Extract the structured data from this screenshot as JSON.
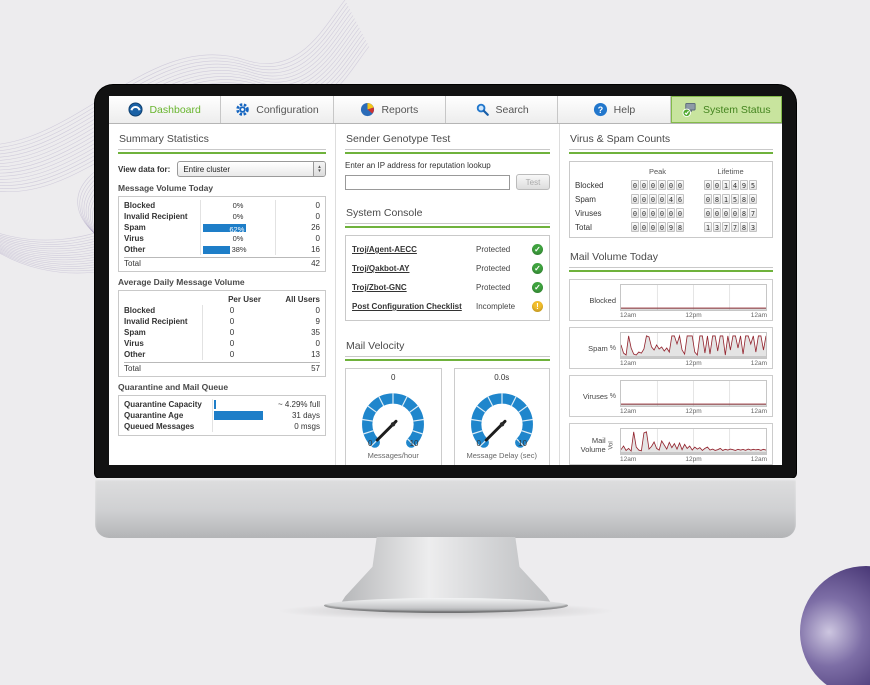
{
  "colors": {
    "accent_green": "#6fb23c",
    "active_tab_green": "#68b52e",
    "bar_blue": "#1e7ec8",
    "gauge_blue": "#1f86cc",
    "spark_red": "#93242e",
    "ok_green": "#3fa23f",
    "warn_yellow": "#f1bd2c"
  },
  "nav": {
    "tabs": [
      {
        "label": "Dashboard",
        "icon": "dashboard-icon"
      },
      {
        "label": "Configuration",
        "icon": "gear-icon"
      },
      {
        "label": "Reports",
        "icon": "pie-chart-icon"
      },
      {
        "label": "Search",
        "icon": "search-icon"
      },
      {
        "label": "Help",
        "icon": "help-icon"
      },
      {
        "label": "System Status",
        "icon": "system-status-icon"
      }
    ]
  },
  "summary": {
    "title": "Summary Statistics",
    "view_label": "View data for:",
    "view_value": "Entire cluster",
    "message_volume_today": {
      "title": "Message Volume Today",
      "rows": [
        {
          "label": "Blocked",
          "pct": 0,
          "pct_label": "0%",
          "count": "0"
        },
        {
          "label": "Invalid Recipient",
          "pct": 0,
          "pct_label": "0%",
          "count": "0"
        },
        {
          "label": "Spam",
          "pct": 62,
          "pct_label": "62%",
          "count": "26"
        },
        {
          "label": "Virus",
          "pct": 0,
          "pct_label": "0%",
          "count": "0"
        },
        {
          "label": "Other",
          "pct": 38,
          "pct_label": "38%",
          "count": "16"
        }
      ],
      "total_label": "Total",
      "total": "42"
    },
    "avg_daily": {
      "title": "Average Daily Message Volume",
      "col1": "Per User",
      "col2": "All Users",
      "rows": [
        {
          "label": "Blocked",
          "per_user": "0",
          "all_users": "0"
        },
        {
          "label": "Invalid Recipient",
          "per_user": "0",
          "all_users": "9"
        },
        {
          "label": "Spam",
          "per_user": "0",
          "all_users": "35"
        },
        {
          "label": "Virus",
          "per_user": "0",
          "all_users": "0"
        },
        {
          "label": "Other",
          "per_user": "0",
          "all_users": "13"
        }
      ],
      "total_label": "Total",
      "total": "57"
    },
    "quarantine": {
      "title": "Quarantine and Mail Queue",
      "rows": [
        {
          "label": "Quarantine Capacity",
          "pct": 4,
          "value": "~ 4.29% full"
        },
        {
          "label": "Quarantine Age",
          "pct": 100,
          "value": "31 days"
        },
        {
          "label": "Queued Messages",
          "pct": 0,
          "value": "0 msgs"
        }
      ]
    }
  },
  "genotype": {
    "title": "Sender Genotype Test",
    "prompt": "Enter an IP address for reputation lookup",
    "input_value": "",
    "button_label": "Test"
  },
  "console": {
    "title": "System Console",
    "rows": [
      {
        "label": "Troj/Agent-AECC",
        "status": "Protected",
        "state": "ok"
      },
      {
        "label": "Troj/Qakbot-AY",
        "status": "Protected",
        "state": "ok"
      },
      {
        "label": "Troj/Zbot-GNC",
        "status": "Protected",
        "state": "ok"
      },
      {
        "label": "Post Configuration Checklist",
        "status": "Incomplete",
        "state": "warn"
      }
    ]
  },
  "velocity": {
    "title": "Mail Velocity"
  },
  "counts": {
    "title": "Virus & Spam Counts",
    "col1": "Peak",
    "col2": "Lifetime",
    "rows": [
      {
        "label": "Blocked",
        "peak": "000000",
        "lifetime": "001495"
      },
      {
        "label": "Spam",
        "peak": "000046",
        "lifetime": "081580"
      },
      {
        "label": "Viruses",
        "peak": "000000",
        "lifetime": "000087"
      },
      {
        "label": "Total",
        "peak": "000098",
        "lifetime": "137783"
      }
    ]
  },
  "mail_volume": {
    "title": "Mail Volume Today"
  },
  "chart_data": [
    {
      "type": "line",
      "title": "Blocked",
      "ylabel": "",
      "x_ticks": [
        "12am",
        "12pm",
        "12am"
      ],
      "ylim": [
        0,
        100
      ],
      "fill": false,
      "values": [
        0,
        0,
        0,
        0,
        0,
        0,
        0,
        0,
        0,
        0,
        0,
        0,
        0,
        0,
        0,
        0,
        0,
        0,
        0,
        0
      ]
    },
    {
      "type": "line",
      "title": "Spam",
      "ylabel": "%",
      "x_ticks": [
        "12am",
        "12pm",
        "12am"
      ],
      "ylim": [
        0,
        100
      ],
      "fill": true,
      "values": [
        55,
        15,
        5,
        100,
        40,
        10,
        5,
        20,
        15,
        35,
        100,
        95,
        45,
        30,
        55,
        35,
        45,
        25,
        40,
        20,
        100,
        100,
        60,
        100,
        30,
        10,
        100,
        100,
        100,
        20,
        5,
        100,
        100,
        15,
        100,
        10,
        100,
        100,
        25,
        100,
        100,
        5,
        100,
        30,
        100,
        100,
        40,
        100,
        10,
        100,
        100,
        60,
        100,
        20,
        100,
        100,
        30,
        100
      ]
    },
    {
      "type": "line",
      "title": "Viruses",
      "ylabel": "%",
      "x_ticks": [
        "12am",
        "12pm",
        "12am"
      ],
      "ylim": [
        0,
        100
      ],
      "fill": false,
      "values": [
        0,
        0,
        0,
        0,
        0,
        0,
        0,
        0,
        0,
        0,
        0,
        0,
        0,
        0,
        0,
        0,
        0,
        0,
        0,
        0
      ]
    },
    {
      "type": "line",
      "title": "Mail Volume",
      "ylabel": "Vol",
      "x_ticks": [
        "12am",
        "12pm",
        "12am"
      ],
      "ylim": [
        0,
        100
      ],
      "fill": true,
      "values": [
        12,
        30,
        8,
        18,
        5,
        100,
        25,
        10,
        6,
        95,
        100,
        15,
        28,
        50,
        18,
        10,
        55,
        35,
        15,
        48,
        22,
        42,
        15,
        45,
        12,
        38,
        18,
        30,
        10,
        25,
        15,
        22,
        8,
        18,
        25,
        10,
        15,
        8,
        12,
        18,
        8,
        14,
        10,
        15,
        12,
        8,
        14,
        10,
        13,
        9,
        15,
        10,
        14,
        11,
        13,
        9,
        14,
        10
      ]
    },
    {
      "type": "gauge",
      "title": "Messages/hour",
      "reading": "0",
      "min": "0",
      "max": "10",
      "value": 0,
      "max_num": 10
    },
    {
      "type": "gauge",
      "title": "Message Delay (sec)",
      "reading": "0.0s",
      "min": "0",
      "max": "10",
      "value": 0,
      "max_num": 10
    }
  ]
}
